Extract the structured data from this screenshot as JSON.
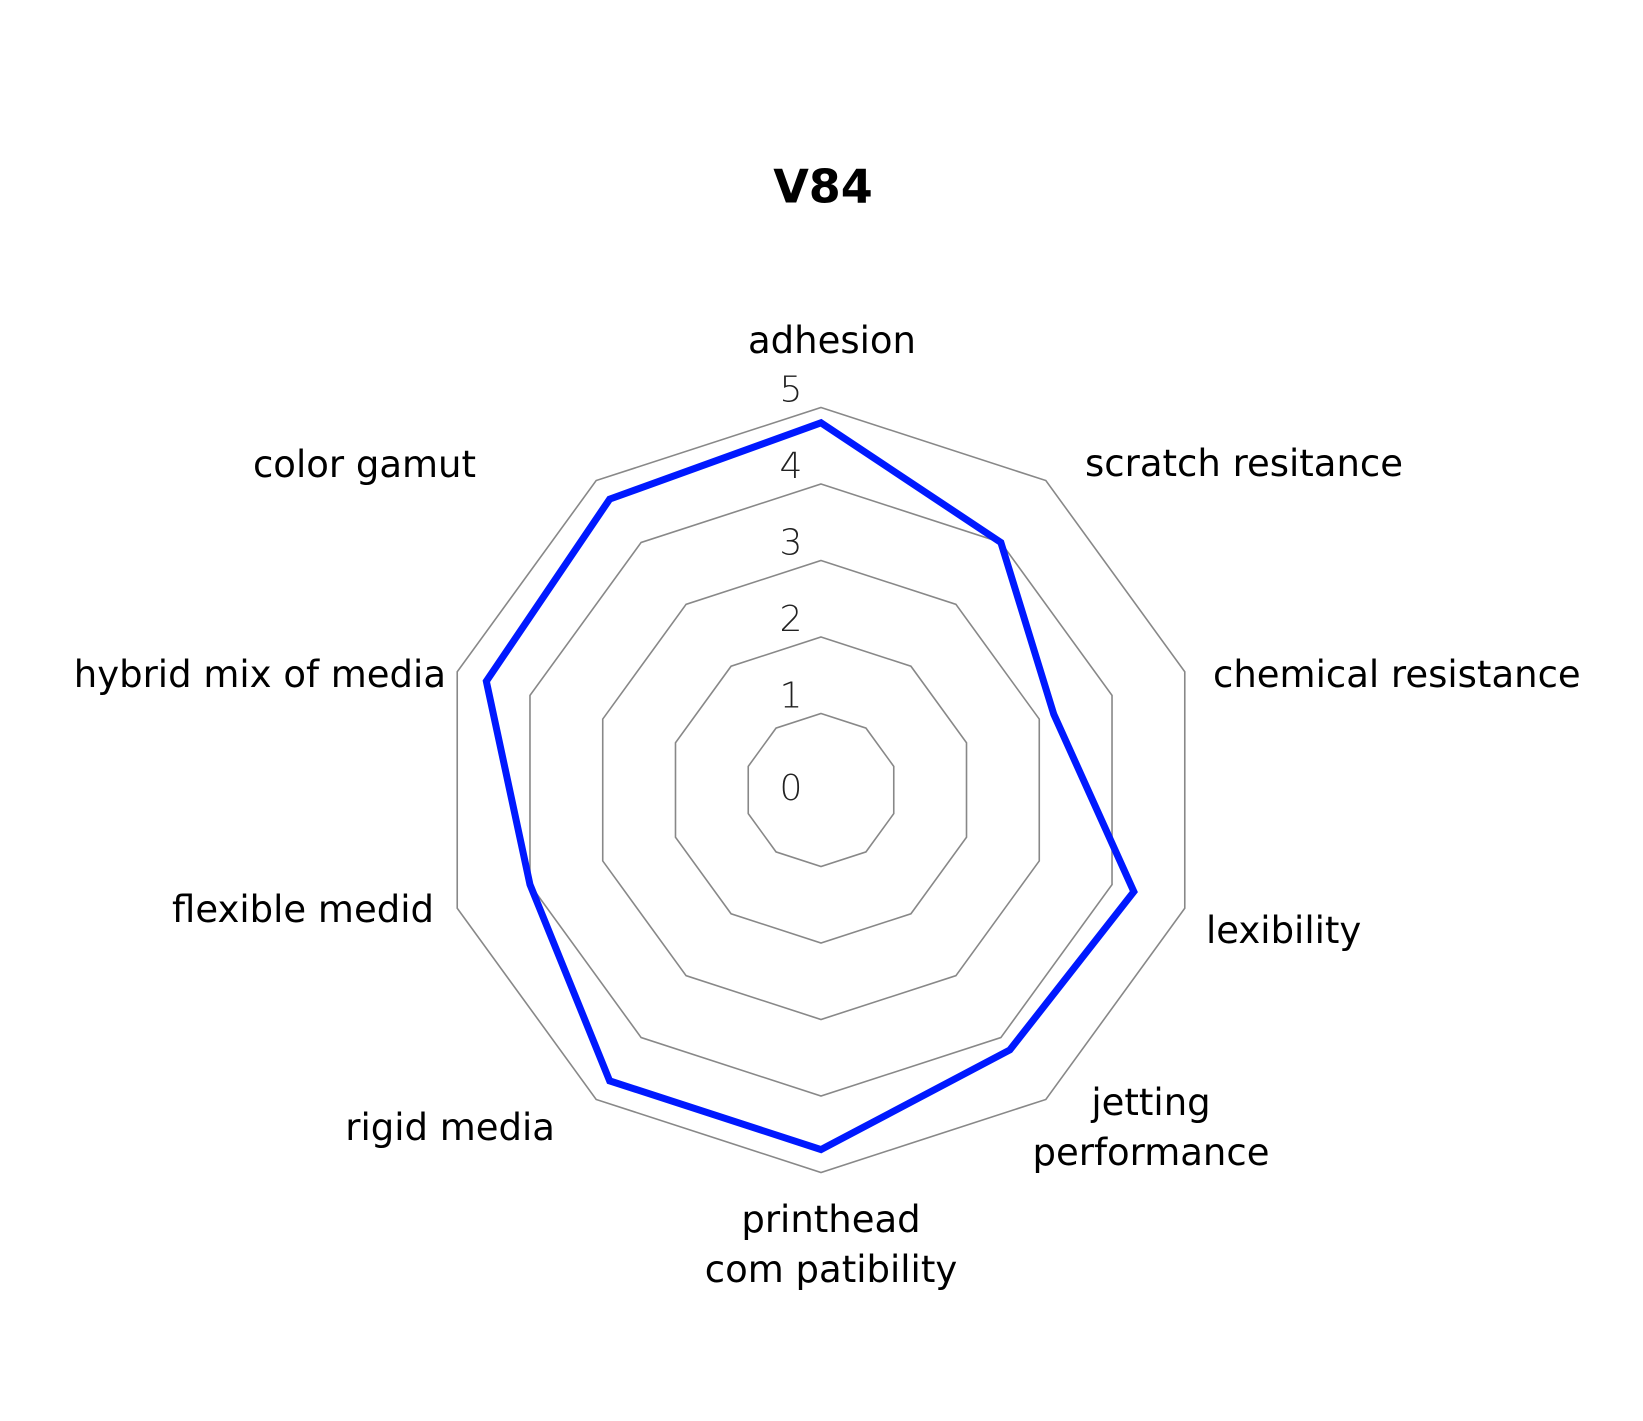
{
  "chart_data": {
    "type": "radar",
    "title": "V84",
    "categories": [
      "adhesion",
      "scratch resitance",
      "chemical resistance",
      "lexibility",
      "jetting performance",
      "printhead com patibility",
      "rigid media",
      "flexible medid",
      "hybrid mix of media",
      "color gamut"
    ],
    "category_lines": [
      [
        "adhesion"
      ],
      [
        "scratch resitance"
      ],
      [
        "chemical resistance"
      ],
      [
        "lexibility"
      ],
      [
        "jetting",
        "performance"
      ],
      [
        "printhead",
        "com patibility"
      ],
      [
        "rigid media"
      ],
      [
        "flexible medid"
      ],
      [
        "hybrid mix of media"
      ],
      [
        "color gamut"
      ]
    ],
    "series": [
      {
        "values": [
          4.8,
          4.0,
          3.2,
          4.3,
          4.2,
          4.7,
          4.7,
          4.0,
          4.6,
          4.7
        ],
        "color": "#0019ff"
      }
    ],
    "radial_ticks": [
      "0",
      "1",
      "2",
      "3",
      "4",
      "5"
    ],
    "rlim": [
      0,
      5
    ],
    "grid": true,
    "grid_color": "#888888",
    "legend": "none"
  }
}
